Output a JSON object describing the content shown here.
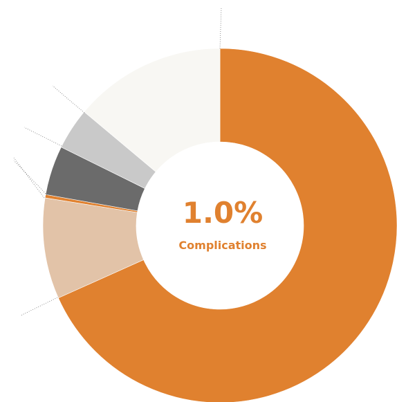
{
  "chart_data": {
    "type": "donut",
    "center_value": "1.0%",
    "center_label": "Complications",
    "values": [
      68.3,
      9.2,
      0.3,
      4.5,
      3.8,
      13.9
    ],
    "colors": [
      "#e0812f",
      "#e2c3a8",
      "#e0812f",
      "#6b6b6b",
      "#c9c9c9",
      "#f8f7f3"
    ]
  }
}
